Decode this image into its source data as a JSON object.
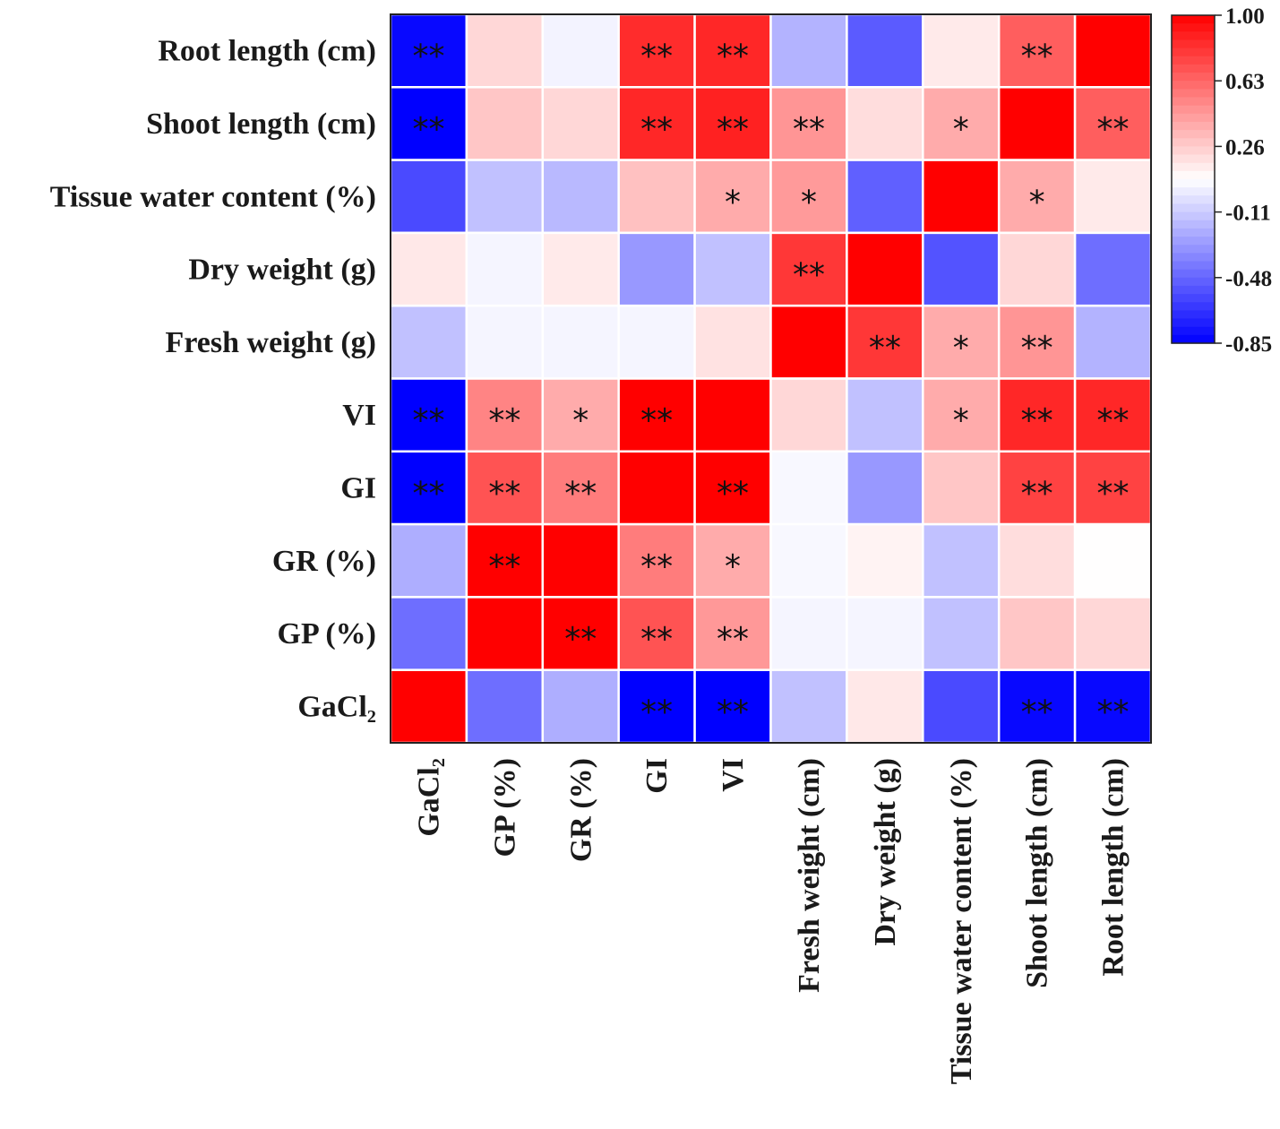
{
  "chart_data": {
    "type": "heatmap",
    "title": "",
    "row_labels": [
      "Root length (cm)",
      "Shoot length (cm)",
      "Tissue water content (%)",
      "Dry weight (g)",
      "Fresh weight (g)",
      "VI",
      "GI",
      "GR (%)",
      "GP (%)",
      "GaCl₂"
    ],
    "col_labels": [
      "GaCl₂",
      "GP (%)",
      "GR (%)",
      "GI",
      "VI",
      "Fresh weight (cm)",
      "Dry weight (g)",
      "Tissue water content (%)",
      "Shoot length (cm)",
      "Root length (cm)"
    ],
    "values": [
      [
        -0.82,
        0.22,
        0.03,
        0.84,
        0.86,
        -0.2,
        -0.52,
        0.15,
        0.66,
        1.0
      ],
      [
        -0.85,
        0.28,
        0.22,
        0.86,
        0.88,
        0.46,
        0.2,
        0.38,
        1.0,
        0.66
      ],
      [
        -0.58,
        -0.15,
        -0.18,
        0.3,
        0.38,
        0.44,
        -0.5,
        1.0,
        0.38,
        0.15
      ],
      [
        0.16,
        0.04,
        0.15,
        -0.3,
        -0.15,
        0.8,
        1.0,
        -0.55,
        0.22,
        -0.45
      ],
      [
        -0.15,
        0.04,
        0.04,
        0.04,
        0.18,
        1.0,
        0.8,
        0.38,
        0.46,
        -0.2
      ],
      [
        -0.85,
        0.52,
        0.38,
        1.0,
        1.0,
        0.22,
        -0.15,
        0.38,
        0.86,
        0.86
      ],
      [
        -0.85,
        0.7,
        0.55,
        1.0,
        1.0,
        0.05,
        -0.3,
        0.28,
        0.76,
        0.76
      ],
      [
        -0.22,
        1.0,
        1.0,
        0.55,
        0.38,
        0.05,
        0.12,
        -0.15,
        0.2,
        0.08
      ],
      [
        -0.45,
        1.0,
        1.0,
        0.7,
        0.45,
        0.04,
        0.04,
        -0.15,
        0.28,
        0.22
      ],
      [
        1.0,
        -0.45,
        -0.22,
        -0.85,
        -0.85,
        -0.15,
        0.16,
        -0.58,
        -0.82,
        -0.82
      ]
    ],
    "significance": [
      [
        "**",
        "",
        "",
        "**",
        "**",
        "",
        "",
        "",
        "**",
        ""
      ],
      [
        "**",
        "",
        "",
        "**",
        "**",
        "**",
        "",
        "*",
        "",
        "**"
      ],
      [
        "",
        "",
        "",
        "",
        "*",
        "*",
        "",
        "",
        "*",
        ""
      ],
      [
        "",
        "",
        "",
        "",
        "",
        "**",
        "",
        "",
        "",
        ""
      ],
      [
        "",
        "",
        "",
        "",
        "",
        "",
        "**",
        "*",
        "**",
        ""
      ],
      [
        "**",
        "**",
        "*",
        "**",
        "",
        "",
        "",
        "*",
        "**",
        "**"
      ],
      [
        "**",
        "**",
        "**",
        "",
        "**",
        "",
        "",
        "",
        "**",
        "**"
      ],
      [
        "",
        "**",
        "",
        "**",
        "*",
        "",
        "",
        "",
        "",
        ""
      ],
      [
        "",
        "",
        "**",
        "**",
        "**",
        "",
        "",
        "",
        "",
        ""
      ],
      [
        "",
        "",
        "",
        "**",
        "**",
        "",
        "",
        "",
        "**",
        "**"
      ]
    ],
    "colorbar": {
      "min": -0.85,
      "max": 1.0,
      "ticks": [
        "1.00",
        "0.63",
        "0.26",
        "-0.11",
        "-0.48",
        "-0.85"
      ],
      "tick_values": [
        1.0,
        0.63,
        0.26,
        -0.11,
        -0.48,
        -0.85
      ],
      "colors": {
        "low": "#0000ff",
        "mid": "#ffffff",
        "high": "#ff0000"
      }
    }
  }
}
